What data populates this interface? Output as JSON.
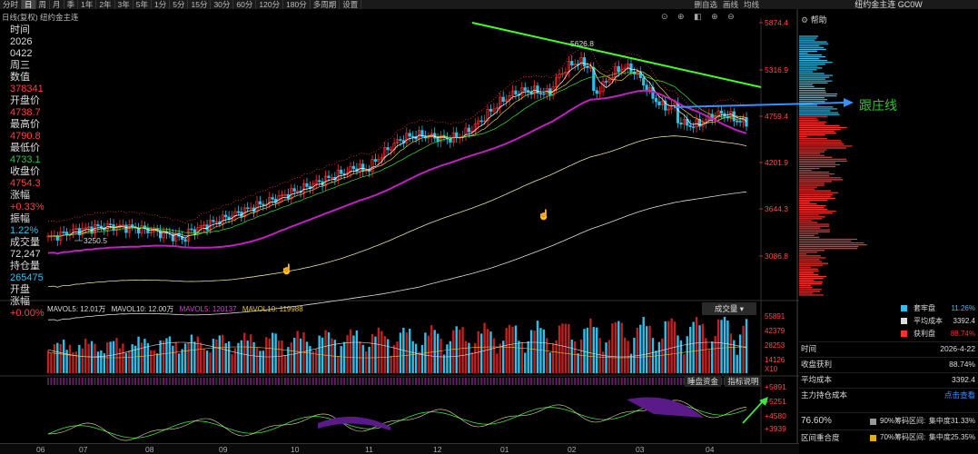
{
  "toolbar": {
    "items": [
      "分时",
      "日",
      "周",
      "月",
      "季",
      "1年",
      "2年",
      "3年",
      "5年",
      "1分",
      "5分",
      "15分",
      "30分",
      "60分",
      "120分",
      "180分",
      "多周期",
      "设置"
    ],
    "active_index": 1,
    "right_items": [
      "删自选",
      "画线",
      "均线"
    ]
  },
  "window_title": "纽约金主连 GC0W",
  "chart_label": "日线(复权)  纽约金主连",
  "chart_tool_icons": "⊙ ⊕ ◧ ⊕ ⊖",
  "left_panel": {
    "time_label": "时间",
    "year": "2026",
    "date": "0422",
    "weekday": "周三",
    "count_label": "数值",
    "count": "378341",
    "open_label": "开盘价",
    "open": "4738.7",
    "high_label": "最高价",
    "high": "4790.8",
    "low_label": "最低价",
    "low": "4733.1",
    "close_label": "收盘价",
    "close": "4754.3",
    "change_label": "涨幅",
    "change": "+0.33%",
    "amplitude_label": "振幅",
    "amplitude": "1.22%",
    "volume_label": "成交量",
    "volume": "72,247",
    "oi_label": "持仓量",
    "oi": "265475",
    "oi_change_label": "开盘涨幅",
    "oi_change": "+0.00%"
  },
  "price_axis": [
    "5874.4",
    "5316.9",
    "4759.4",
    "4201.9",
    "3644.3",
    "3086.8"
  ],
  "price_labels": {
    "peak": "5626.8",
    "low": "3250.5"
  },
  "volume_axis": [
    "55891",
    "42379",
    "28253",
    "14126",
    "X10"
  ],
  "indicator_axis": [
    "+5891",
    "+5251",
    "+4580",
    "+3939"
  ],
  "volume_header": {
    "mavol5": "MAVOL5: 12.01万",
    "mavol10": "MAVOL10: 12.00万",
    "mavol5b": "MAVOL5: 120137",
    "mavol10b": "MAVOL10: 119988"
  },
  "volume_dropdown": "成交量 ▾",
  "indicator_buttons": [
    "睡盘资金",
    "指标说明"
  ],
  "months": [
    "06",
    "07",
    "08",
    "09",
    "10",
    "11",
    "12",
    "01",
    "02",
    "03",
    "04"
  ],
  "right_panel": {
    "help": "帮助",
    "legend": [
      {
        "name": "套牢盘",
        "value": "11.26%",
        "color": "#2fc0ea"
      },
      {
        "name": "平均成本",
        "value": "3392.4",
        "color": "#dddddd"
      },
      {
        "name": "获利盘",
        "value": "88.74%",
        "color": "#ff3030"
      }
    ],
    "info": [
      {
        "k": "时间",
        "v": "2026-4-22"
      },
      {
        "k": "收盘获利",
        "v": "88.74%"
      },
      {
        "k": "平均成本",
        "v": "3392.4"
      },
      {
        "k": "主力持仓成本",
        "v": "点击查看"
      }
    ],
    "concentration": [
      {
        "pct": "76.60%",
        "label": "90%筹码区间:",
        "value": "集中度31.33%"
      },
      {
        "pct": "区间重合度",
        "label": "70%筹码区间:",
        "value": "集中度25.35%"
      }
    ]
  },
  "annotation": "跟庄线",
  "colors": {
    "up": "#ff3030",
    "down": "#2fc0ea",
    "ma_purple": "#c020c0",
    "trend_green": "#44ff22",
    "arrow_blue": "#3a8fff"
  }
}
